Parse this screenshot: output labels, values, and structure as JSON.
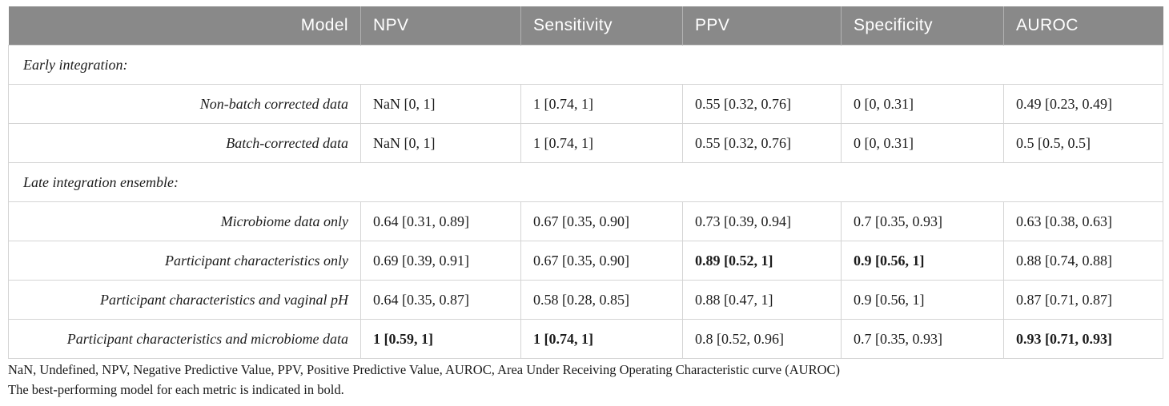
{
  "header": {
    "columns": [
      "Model",
      "NPV",
      "Sensitivity",
      "PPV",
      "Specificity",
      "AUROC"
    ]
  },
  "table": {
    "sections": [
      {
        "label": "Early integration:",
        "rows": [
          {
            "model": "Non-batch corrected data",
            "values": [
              {
                "text": "NaN [0, 1]",
                "bold": false
              },
              {
                "text": "1 [0.74, 1]",
                "bold": false
              },
              {
                "text": "0.55 [0.32, 0.76]",
                "bold": false
              },
              {
                "text": "0 [0, 0.31]",
                "bold": false
              },
              {
                "text": "0.49 [0.23, 0.49]",
                "bold": false
              }
            ]
          },
          {
            "model": "Batch-corrected data",
            "values": [
              {
                "text": "NaN [0, 1]",
                "bold": false
              },
              {
                "text": "1 [0.74, 1]",
                "bold": false
              },
              {
                "text": "0.55 [0.32, 0.76]",
                "bold": false
              },
              {
                "text": "0 [0, 0.31]",
                "bold": false
              },
              {
                "text": "0.5 [0.5, 0.5]",
                "bold": false
              }
            ]
          }
        ]
      },
      {
        "label": "Late integration ensemble:",
        "rows": [
          {
            "model": "Microbiome data only",
            "values": [
              {
                "text": "0.64 [0.31, 0.89]",
                "bold": false
              },
              {
                "text": "0.67 [0.35, 0.90]",
                "bold": false
              },
              {
                "text": "0.73 [0.39, 0.94]",
                "bold": false
              },
              {
                "text": "0.7 [0.35, 0.93]",
                "bold": false
              },
              {
                "text": "0.63 [0.38, 0.63]",
                "bold": false
              }
            ]
          },
          {
            "model": "Participant characteristics only",
            "values": [
              {
                "text": "0.69 [0.39, 0.91]",
                "bold": false
              },
              {
                "text": "0.67 [0.35, 0.90]",
                "bold": false
              },
              {
                "text": "0.89 [0.52, 1]",
                "bold": true
              },
              {
                "text": "0.9 [0.56, 1]",
                "bold": true
              },
              {
                "text": "0.88 [0.74, 0.88]",
                "bold": false
              }
            ]
          },
          {
            "model": "Participant characteristics and vaginal pH",
            "values": [
              {
                "text": "0.64 [0.35, 0.87]",
                "bold": false
              },
              {
                "text": "0.58 [0.28, 0.85]",
                "bold": false
              },
              {
                "text": "0.88 [0.47, 1]",
                "bold": false
              },
              {
                "text": "0.9 [0.56, 1]",
                "bold": false
              },
              {
                "text": "0.87 [0.71, 0.87]",
                "bold": false
              }
            ]
          },
          {
            "model": "Participant characteristics and microbiome data",
            "values": [
              {
                "text": "1 [0.59, 1]",
                "bold": true
              },
              {
                "text": "1 [0.74, 1]",
                "bold": true
              },
              {
                "text": "0.8 [0.52, 0.96]",
                "bold": false
              },
              {
                "text": "0.7 [0.35, 0.93]",
                "bold": false
              },
              {
                "text": "0.93 [0.71, 0.93]",
                "bold": true
              }
            ]
          }
        ]
      }
    ]
  },
  "footnotes": {
    "abbreviations": "NaN, Undefined, NPV, Negative Predictive Value, PPV, Positive Predictive Value, AUROC, Area Under Receiving Operating Characteristic curve (AUROC)",
    "bold_note": "The best-performing model for each metric is indicated in bold."
  },
  "colors": {
    "header_bg": "#898989",
    "header_text": "#ffffff",
    "header_divider": "#b2b2b2",
    "body_border": "#d4d4d4",
    "body_text": "#1c1c1c"
  }
}
